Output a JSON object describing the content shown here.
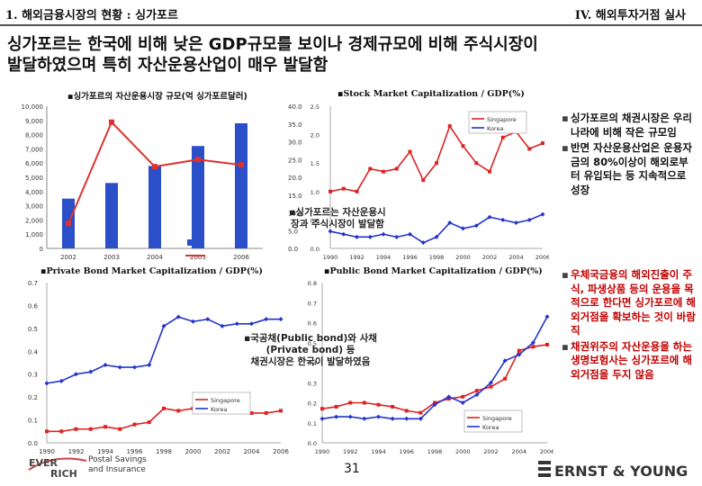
{
  "header": {
    "left": "1. 해외금융시장의 현황 : 싱가포르",
    "right": "IV. 해외투자거점 실사"
  },
  "headline": [
    "싱가포르는 한국에 비해 낮은 GDP규모를 보이나 경제규모에 비해 주식시장이",
    "발달하였으며 특히 자산운용산업이 매우 발달함"
  ],
  "captions": {
    "c1": "▪싱가포르의 자산운용시장 규모(억 싱가포르달러)",
    "c2": "▪Stock Market Capitalization / GDP(%)",
    "c3": "▪Private Bond Market Capitalization / GDP(%)",
    "c4": "▪Public Bond Market Capitalization / GDP(%)"
  },
  "notes": {
    "n1": [
      "▪싱가포르는 자산운용시",
      "장과 주식시장이 발달함"
    ],
    "n2": [
      "▪국공채(Public bond)와 사채 (Private bond) 등",
      "채권시장은 한국이 발달하였음"
    ]
  },
  "sidebar": {
    "items": [
      {
        "text": "싱가포르의 채권시장은 우리나라에 비해 작은 규모임",
        "color": "#111111"
      },
      {
        "text": "반면 자산운용산업은 운용자금의 80%이상이 해외로부터 유입되는 등 지속적으로 성장",
        "color": "#111111"
      },
      {
        "text": "우체국금융의 해외진출이 주식, 파생상품 등의 운용을 목적으로 한다면 싱가포르에 해외거점을 확보하는 것이 바람직",
        "color": "#c00000"
      },
      {
        "text": "채권위주의 자산운용을 하는 생명보험사는 싱가포르에 해외거점을 두지 않음",
        "color": "#c00000"
      }
    ]
  },
  "footer": {
    "logo_top": "EVER",
    "logo_bottom": "RICH",
    "logo_line1": "Postal Savings",
    "logo_line2": "and Insurance",
    "page": "31",
    "ey_logo": "ERNST & YOUNG"
  },
  "colors": {
    "singapore": "#dd2222",
    "korea": "#2233cc",
    "bars": "#2a4fc9",
    "line": "#e03030",
    "ey": "#333333"
  },
  "chart_data": [
    {
      "type": "bar",
      "categories": [
        "2002",
        "2003",
        "2004",
        "2005",
        "2006"
      ],
      "left_ticks": [
        "10,000",
        "9,000",
        "8,000",
        "7,000",
        "6,000",
        "5,000",
        "4,000",
        "3,000",
        "2,000",
        "1,000",
        "0"
      ],
      "right_ticks": [
        "40.0",
        "35.0",
        "30.0",
        "25.0",
        "20.0",
        "15.0",
        "10.0",
        "5.0",
        "0.0"
      ],
      "ylim": [
        0,
        10000
      ],
      "y2lim": [
        0,
        40
      ],
      "series": [
        {
          "kind": "bar",
          "values": [
            3500,
            4600,
            5800,
            7200,
            8800
          ]
        },
        {
          "kind": "line",
          "values": [
            7.0,
            35.5,
            23.0,
            25.0,
            23.5
          ]
        }
      ]
    },
    {
      "type": "line",
      "x": [
        1990,
        1991,
        1992,
        1993,
        1994,
        1995,
        1996,
        1997,
        1998,
        1999,
        2000,
        2001,
        2002,
        2003,
        2004,
        2005,
        2006
      ],
      "x_ticks": [
        "1990",
        "1992",
        "1994",
        "1996",
        "1998",
        "2000",
        "2002",
        "2004",
        "2006"
      ],
      "y_ticks": [
        "2.5",
        "2.0",
        "1.5",
        "1.0",
        "0.5",
        "0.0"
      ],
      "ylim": [
        0,
        2.5
      ],
      "series": [
        {
          "name": "Singapore",
          "values": [
            1.0,
            1.05,
            1.0,
            1.4,
            1.35,
            1.4,
            1.7,
            1.2,
            1.5,
            2.15,
            1.8,
            1.5,
            1.35,
            1.95,
            2.05,
            1.75,
            1.85
          ]
        },
        {
          "name": "Korea",
          "values": [
            0.3,
            0.25,
            0.2,
            0.2,
            0.25,
            0.2,
            0.25,
            0.1,
            0.2,
            0.45,
            0.35,
            0.4,
            0.55,
            0.5,
            0.45,
            0.5,
            0.6
          ]
        }
      ]
    },
    {
      "type": "line",
      "x": [
        1990,
        1991,
        1992,
        1993,
        1994,
        1995,
        1996,
        1997,
        1998,
        1999,
        2000,
        2001,
        2002,
        2003,
        2004,
        2005,
        2006
      ],
      "x_ticks": [
        "1990",
        "1992",
        "1994",
        "1996",
        "1998",
        "2000",
        "2002",
        "2004",
        "2006"
      ],
      "y_ticks": [
        "0.7",
        "0.6",
        "0.5",
        "0.4",
        "0.3",
        "0.2",
        "0.1",
        "0.0"
      ],
      "ylim": [
        0,
        0.7
      ],
      "series": [
        {
          "name": "Singapore",
          "values": [
            0.05,
            0.05,
            0.06,
            0.06,
            0.07,
            0.06,
            0.08,
            0.09,
            0.15,
            0.14,
            0.15,
            0.15,
            0.14,
            0.14,
            0.13,
            0.13,
            0.14
          ]
        },
        {
          "name": "Korea",
          "values": [
            0.26,
            0.27,
            0.3,
            0.31,
            0.34,
            0.33,
            0.33,
            0.34,
            0.51,
            0.55,
            0.53,
            0.54,
            0.51,
            0.52,
            0.52,
            0.54,
            0.54
          ]
        }
      ]
    },
    {
      "type": "line",
      "x": [
        1990,
        1991,
        1992,
        1993,
        1994,
        1995,
        1996,
        1997,
        1998,
        1999,
        2000,
        2001,
        2002,
        2003,
        2004,
        2005,
        2006
      ],
      "x_ticks": [
        "1990",
        "1992",
        "1994",
        "1996",
        "1998",
        "2000",
        "2002",
        "2004",
        "2006"
      ],
      "y_ticks": [
        "0.8",
        "0.7",
        "0.6",
        "0.5",
        "0.4",
        "0.3",
        "0.2",
        "0.1",
        "0.0"
      ],
      "ylim": [
        0,
        0.8
      ],
      "series": [
        {
          "name": "Singapore",
          "values": [
            0.17,
            0.18,
            0.2,
            0.2,
            0.19,
            0.18,
            0.16,
            0.15,
            0.2,
            0.22,
            0.23,
            0.26,
            0.28,
            0.32,
            0.46,
            0.48,
            0.49
          ]
        },
        {
          "name": "Korea",
          "values": [
            0.12,
            0.13,
            0.13,
            0.12,
            0.13,
            0.12,
            0.12,
            0.12,
            0.19,
            0.23,
            0.2,
            0.24,
            0.3,
            0.41,
            0.44,
            0.5,
            0.63
          ]
        }
      ]
    }
  ]
}
